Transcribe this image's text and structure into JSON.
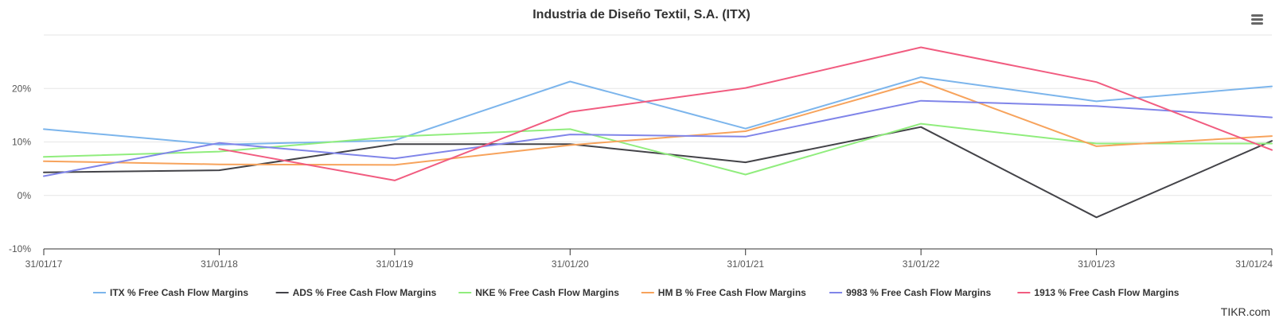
{
  "chart_data": {
    "type": "line",
    "title": "Industria de Diseño Textil, S.A. (ITX)",
    "xlabel": "",
    "ylabel": "",
    "x": [
      "31/01/17",
      "31/01/18",
      "31/01/19",
      "31/01/20",
      "31/01/21",
      "31/01/22",
      "31/01/23",
      "31/01/24"
    ],
    "yticks": [
      -10,
      0,
      10,
      20
    ],
    "ytick_labels": [
      "-10%",
      "0%",
      "10%",
      "20%"
    ],
    "ylim": [
      -10,
      30
    ],
    "grid": true,
    "legend_position": "bottom",
    "series": [
      {
        "name": "ITX % Free Cash Flow Margins",
        "color": "#7cb5ec",
        "values": [
          12.4,
          9.5,
          10.3,
          21.3,
          12.5,
          22.1,
          17.6,
          20.4
        ]
      },
      {
        "name": "ADS % Free Cash Flow Margins",
        "color": "#434348",
        "values": [
          4.3,
          4.7,
          9.6,
          9.6,
          6.2,
          12.8,
          -4.1,
          10.2
        ]
      },
      {
        "name": "NKE % Free Cash Flow Margins",
        "color": "#90ed7d",
        "values": [
          7.2,
          8.2,
          11.0,
          12.4,
          3.9,
          13.4,
          9.7,
          9.7
        ]
      },
      {
        "name": "HM B % Free Cash Flow Margins",
        "color": "#f7a35c",
        "values": [
          6.4,
          5.8,
          5.7,
          9.4,
          12.0,
          21.3,
          9.2,
          11.1
        ]
      },
      {
        "name": "9983 % Free Cash Flow Margins",
        "color": "#8085e9",
        "values": [
          3.6,
          9.8,
          6.9,
          11.4,
          11.0,
          17.7,
          16.7,
          14.6
        ]
      },
      {
        "name": "1913 % Free Cash Flow Margins",
        "color": "#f15c80",
        "values": [
          null,
          8.7,
          2.8,
          15.6,
          20.1,
          27.7,
          21.2,
          8.5
        ]
      }
    ]
  },
  "ui": {
    "credit": "TIKR.com",
    "menu_icon": "hamburger-menu-icon"
  }
}
